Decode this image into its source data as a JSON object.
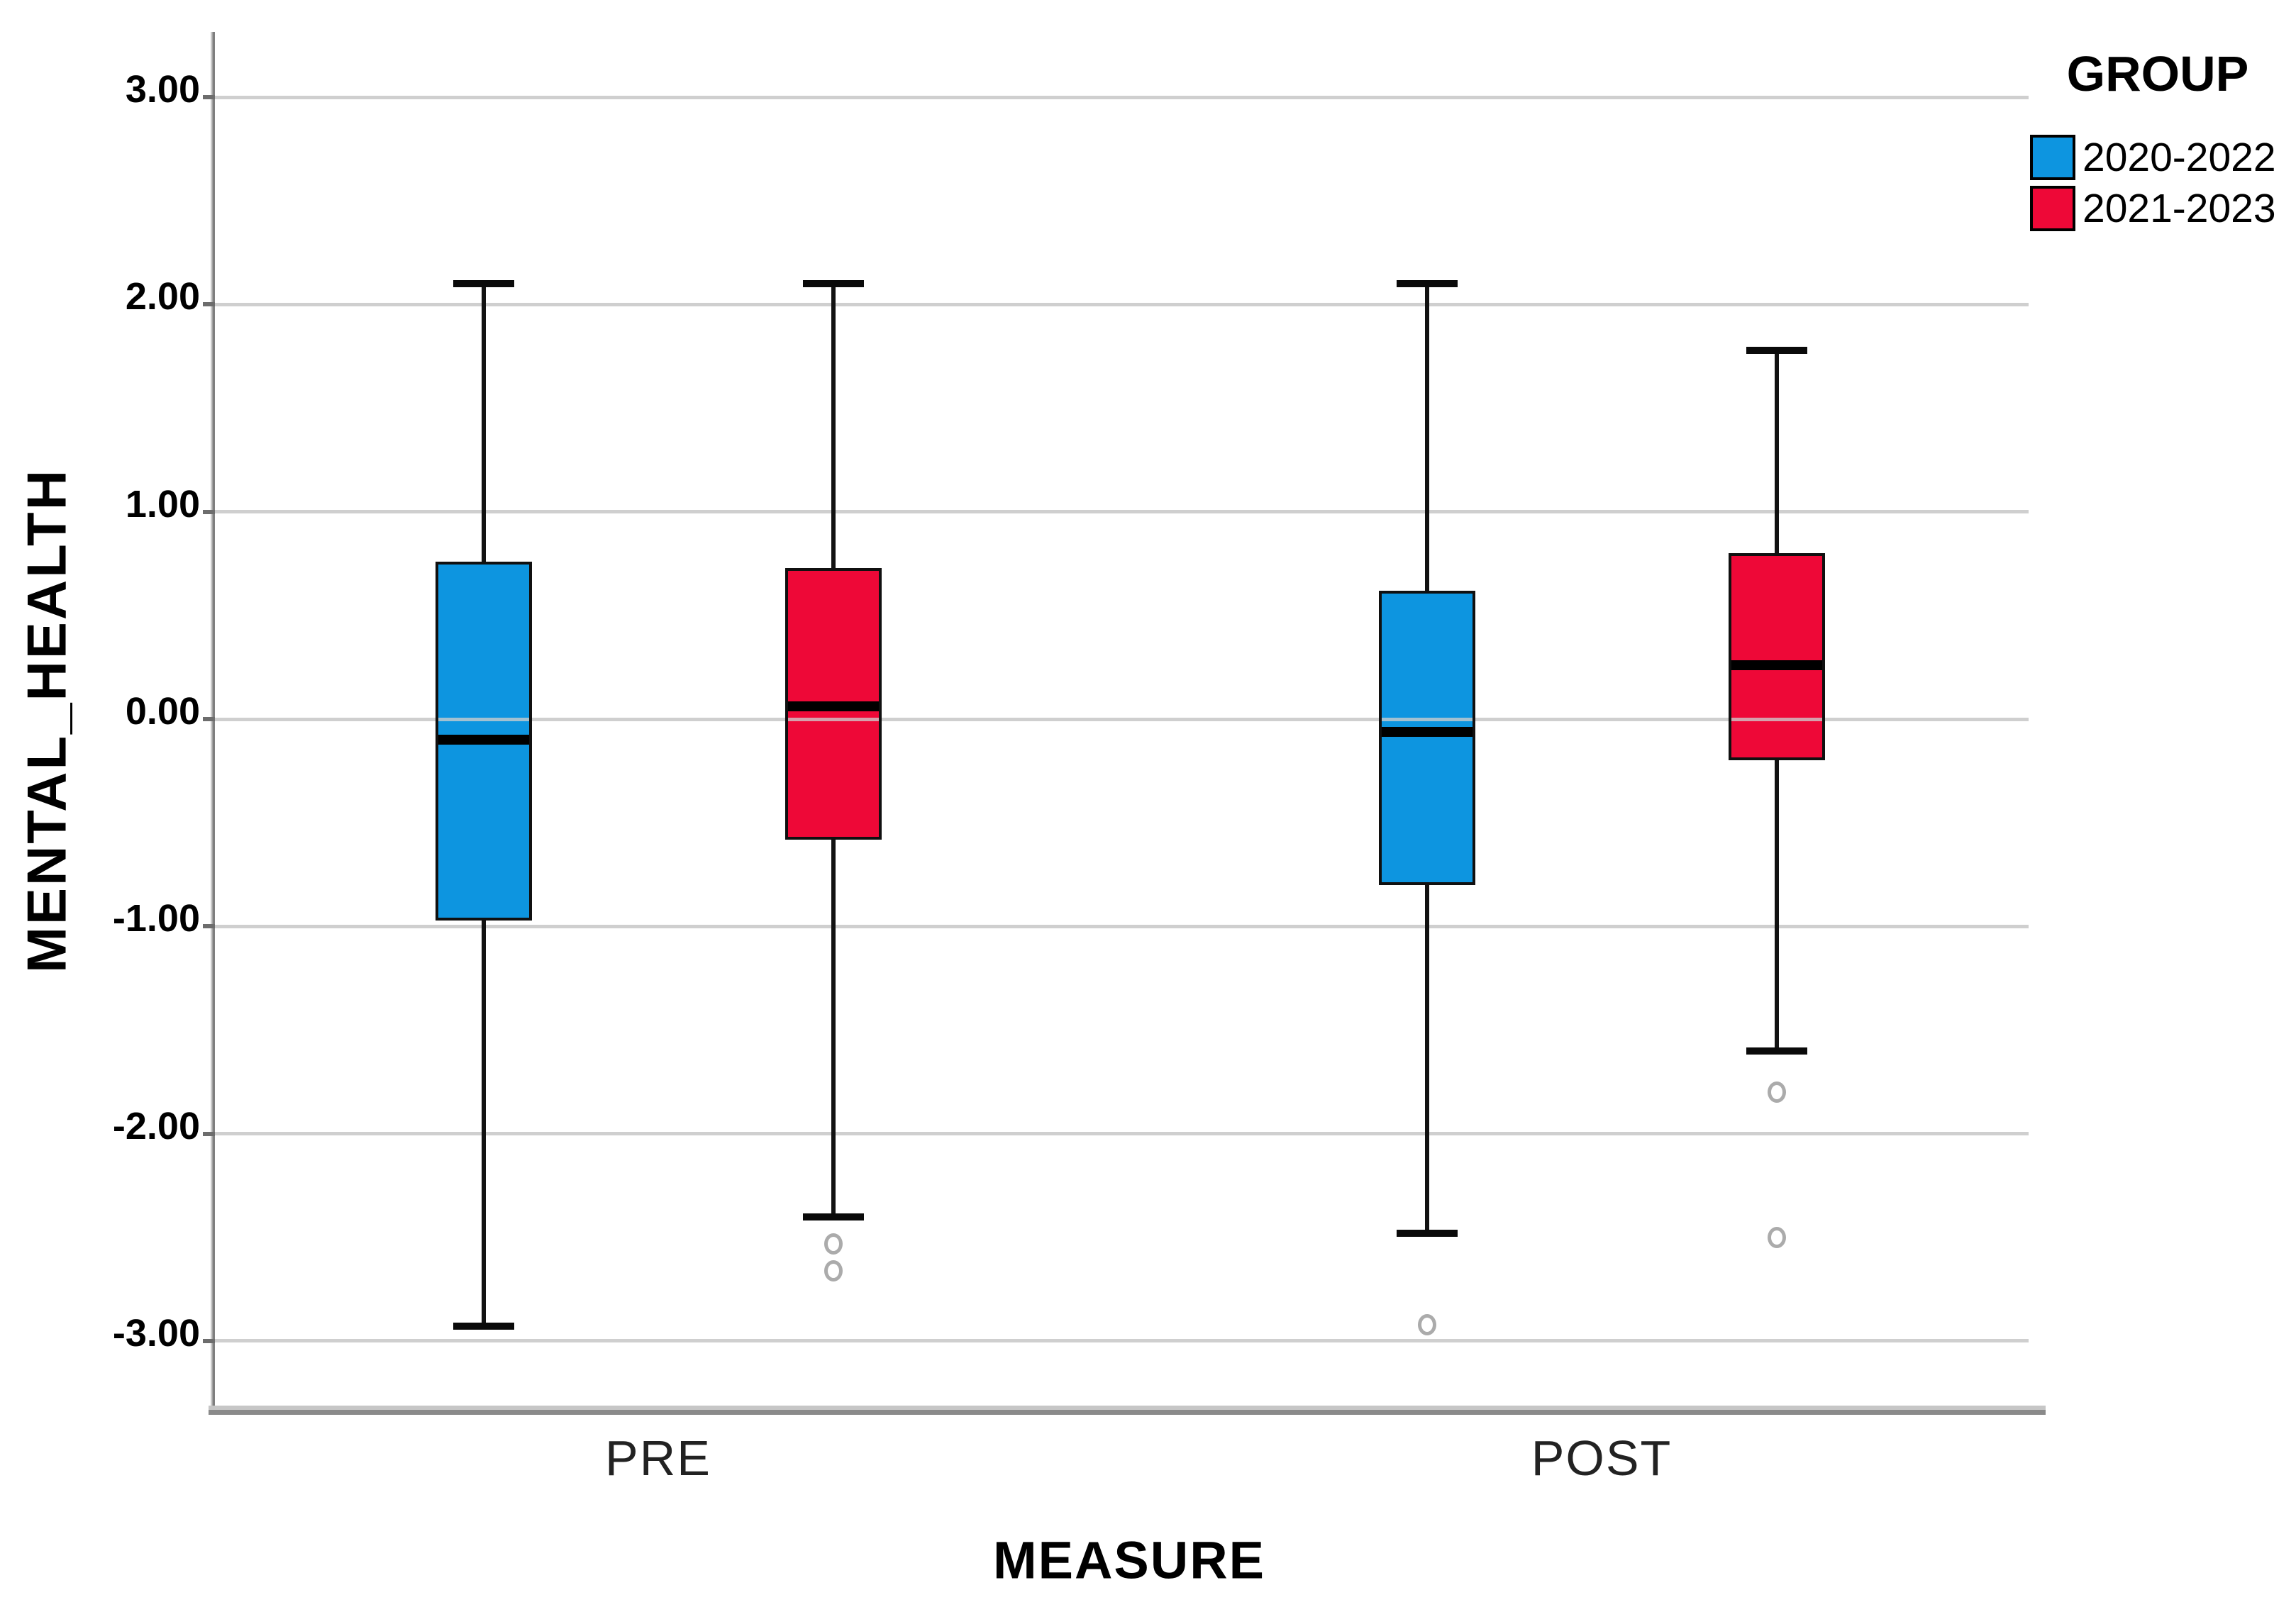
{
  "chart_data": {
    "type": "boxplot",
    "title": "",
    "xlabel": "MEASURE",
    "ylabel": "MENTAL_HEALTH",
    "categories": [
      "PRE",
      "POST"
    ],
    "yticks": [
      "3.00",
      "2.00",
      "1.00",
      "0.00",
      "-1.00",
      "-2.00",
      "-3.00"
    ],
    "ytick_values": [
      3,
      2,
      1,
      0,
      -1,
      -2,
      -3
    ],
    "ylim": [
      -3.3,
      3.3
    ],
    "grid": "horizontal",
    "legend": {
      "title": "GROUP",
      "position": "top-right",
      "entries": [
        {
          "label": "2020-2022",
          "color": "#0d95e0"
        },
        {
          "label": "2021-2023",
          "color": "#ee0837"
        }
      ]
    },
    "series": [
      {
        "name": "2020-2022",
        "color": "#0d95e0",
        "boxes": [
          {
            "category": "PRE",
            "whisker_low": -2.93,
            "q1": -0.97,
            "median": -0.1,
            "q3": 0.76,
            "whisker_high": 2.1,
            "outliers": []
          },
          {
            "category": "POST",
            "whisker_low": -2.48,
            "q1": -0.8,
            "median": -0.06,
            "q3": 0.62,
            "whisker_high": 2.1,
            "outliers": [
              -2.92
            ]
          }
        ]
      },
      {
        "name": "2021-2023",
        "color": "#ee0837",
        "boxes": [
          {
            "category": "PRE",
            "whisker_low": -2.4,
            "q1": -0.58,
            "median": 0.06,
            "q3": 0.73,
            "whisker_high": 2.1,
            "outliers": [
              -2.53,
              -2.66
            ]
          },
          {
            "category": "POST",
            "whisker_low": -1.6,
            "q1": -0.2,
            "median": 0.26,
            "q3": 0.8,
            "whisker_high": 1.78,
            "outliers": [
              -1.8,
              -2.5
            ]
          }
        ]
      }
    ],
    "styles": {
      "gridline_color": "#cfcfcf",
      "axis_line_color": "#8a8a8a",
      "box_border_color": "#101010",
      "median_color": "#000000",
      "whisker_color": "#121212",
      "outlier_color": "#ababab",
      "background": "#ffffff"
    }
  }
}
